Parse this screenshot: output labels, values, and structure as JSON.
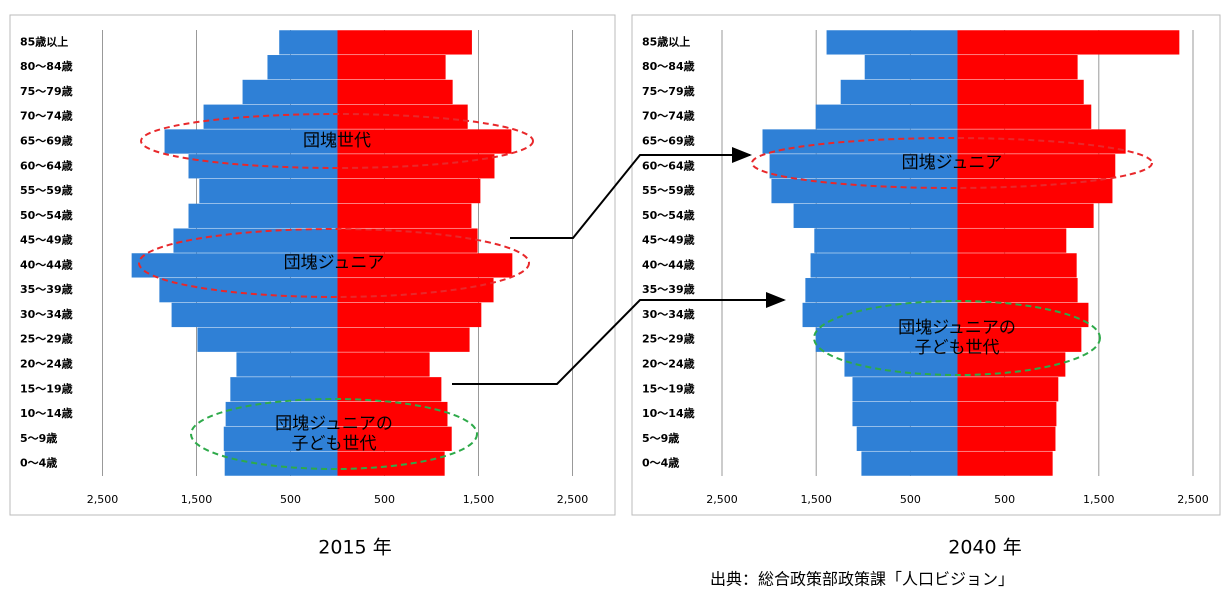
{
  "chart_data": [
    {
      "type": "bar",
      "orientation": "horizontal",
      "caption": "2015 年",
      "categories": [
        "85歳以上",
        "80～84歳",
        "75～79歳",
        "70～74歳",
        "65～69歳",
        "60～64歳",
        "55～59歳",
        "50～54歳",
        "45～49歳",
        "40～44歳",
        "35～39歳",
        "30～34歳",
        "25～29歳",
        "20～24歳",
        "15～19歳",
        "10～14歳",
        "5～9歳",
        "0～4歳"
      ],
      "series": [
        {
          "color": "#2f80d6",
          "values": [
            -620,
            -745,
            -1010,
            -1425,
            -1840,
            -1585,
            -1470,
            -1585,
            -1745,
            -2190,
            -1895,
            -1765,
            -1490,
            -1075,
            -1140,
            -1190,
            -1210,
            -1200
          ]
        },
        {
          "color": "#ff0000",
          "values": [
            1430,
            1150,
            1225,
            1385,
            1850,
            1670,
            1520,
            1425,
            1490,
            1860,
            1660,
            1530,
            1405,
            980,
            1105,
            1170,
            1215,
            1140
          ]
        }
      ],
      "xlim": [
        -2500,
        2500
      ],
      "xticks": [
        {
          "value": -2500,
          "label": "2,500"
        },
        {
          "value": -1500,
          "label": "1,500"
        },
        {
          "value": -500,
          "label": "500"
        },
        500,
        {
          "value": 1500,
          "label": "1,500"
        },
        {
          "value": 2500,
          "label": "2,500"
        }
      ],
      "grid": true,
      "annotations": [
        {
          "text": [
            "団塊世代"
          ],
          "color": "#e8282b"
        },
        {
          "text": [
            "団塊ジュニア"
          ],
          "color": "#e8282b"
        },
        {
          "text": [
            "団塊ジュニアの",
            "子ども世代"
          ],
          "color": "#2eaa4a"
        }
      ]
    },
    {
      "type": "bar",
      "orientation": "horizontal",
      "caption": "2040 年",
      "categories": [
        "85歳以上",
        "80～84歳",
        "75～79歳",
        "70～74歳",
        "65～69歳",
        "60～64歳",
        "55～59歳",
        "50～54歳",
        "45～49歳",
        "40～44歳",
        "35～39歳",
        "30～34歳",
        "25～29歳",
        "20～24歳",
        "15～19歳",
        "10～14歳",
        "5～9歳",
        "0～4歳"
      ],
      "series": [
        {
          "color": "#2f80d6",
          "values": [
            -1390,
            -985,
            -1240,
            -1505,
            -2070,
            -1995,
            -1975,
            -1740,
            -1520,
            -1560,
            -1615,
            -1645,
            -1505,
            -1200,
            -1115,
            -1115,
            -1070,
            -1020
          ]
        },
        {
          "color": "#ff0000",
          "values": [
            2355,
            1275,
            1340,
            1420,
            1785,
            1675,
            1645,
            1445,
            1155,
            1265,
            1275,
            1390,
            1315,
            1145,
            1070,
            1050,
            1040,
            1010
          ]
        }
      ],
      "xlim": [
        -2500,
        2500
      ],
      "xticks": [
        {
          "value": -2500,
          "label": "2,500"
        },
        {
          "value": -1500,
          "label": "1,500"
        },
        {
          "value": -500,
          "label": "500"
        },
        500,
        {
          "value": 1500,
          "label": "1,500"
        },
        {
          "value": 2500,
          "label": "2,500"
        }
      ],
      "grid": true,
      "annotations": [
        {
          "text": [
            "団塊ジュニア"
          ],
          "color": "#e8282b"
        },
        {
          "text": [
            "団塊ジュニアの",
            "子ども世代"
          ],
          "color": "#2eaa4a"
        }
      ]
    }
  ],
  "source": "出典：総合政策部政策課「人口ビジョン」"
}
